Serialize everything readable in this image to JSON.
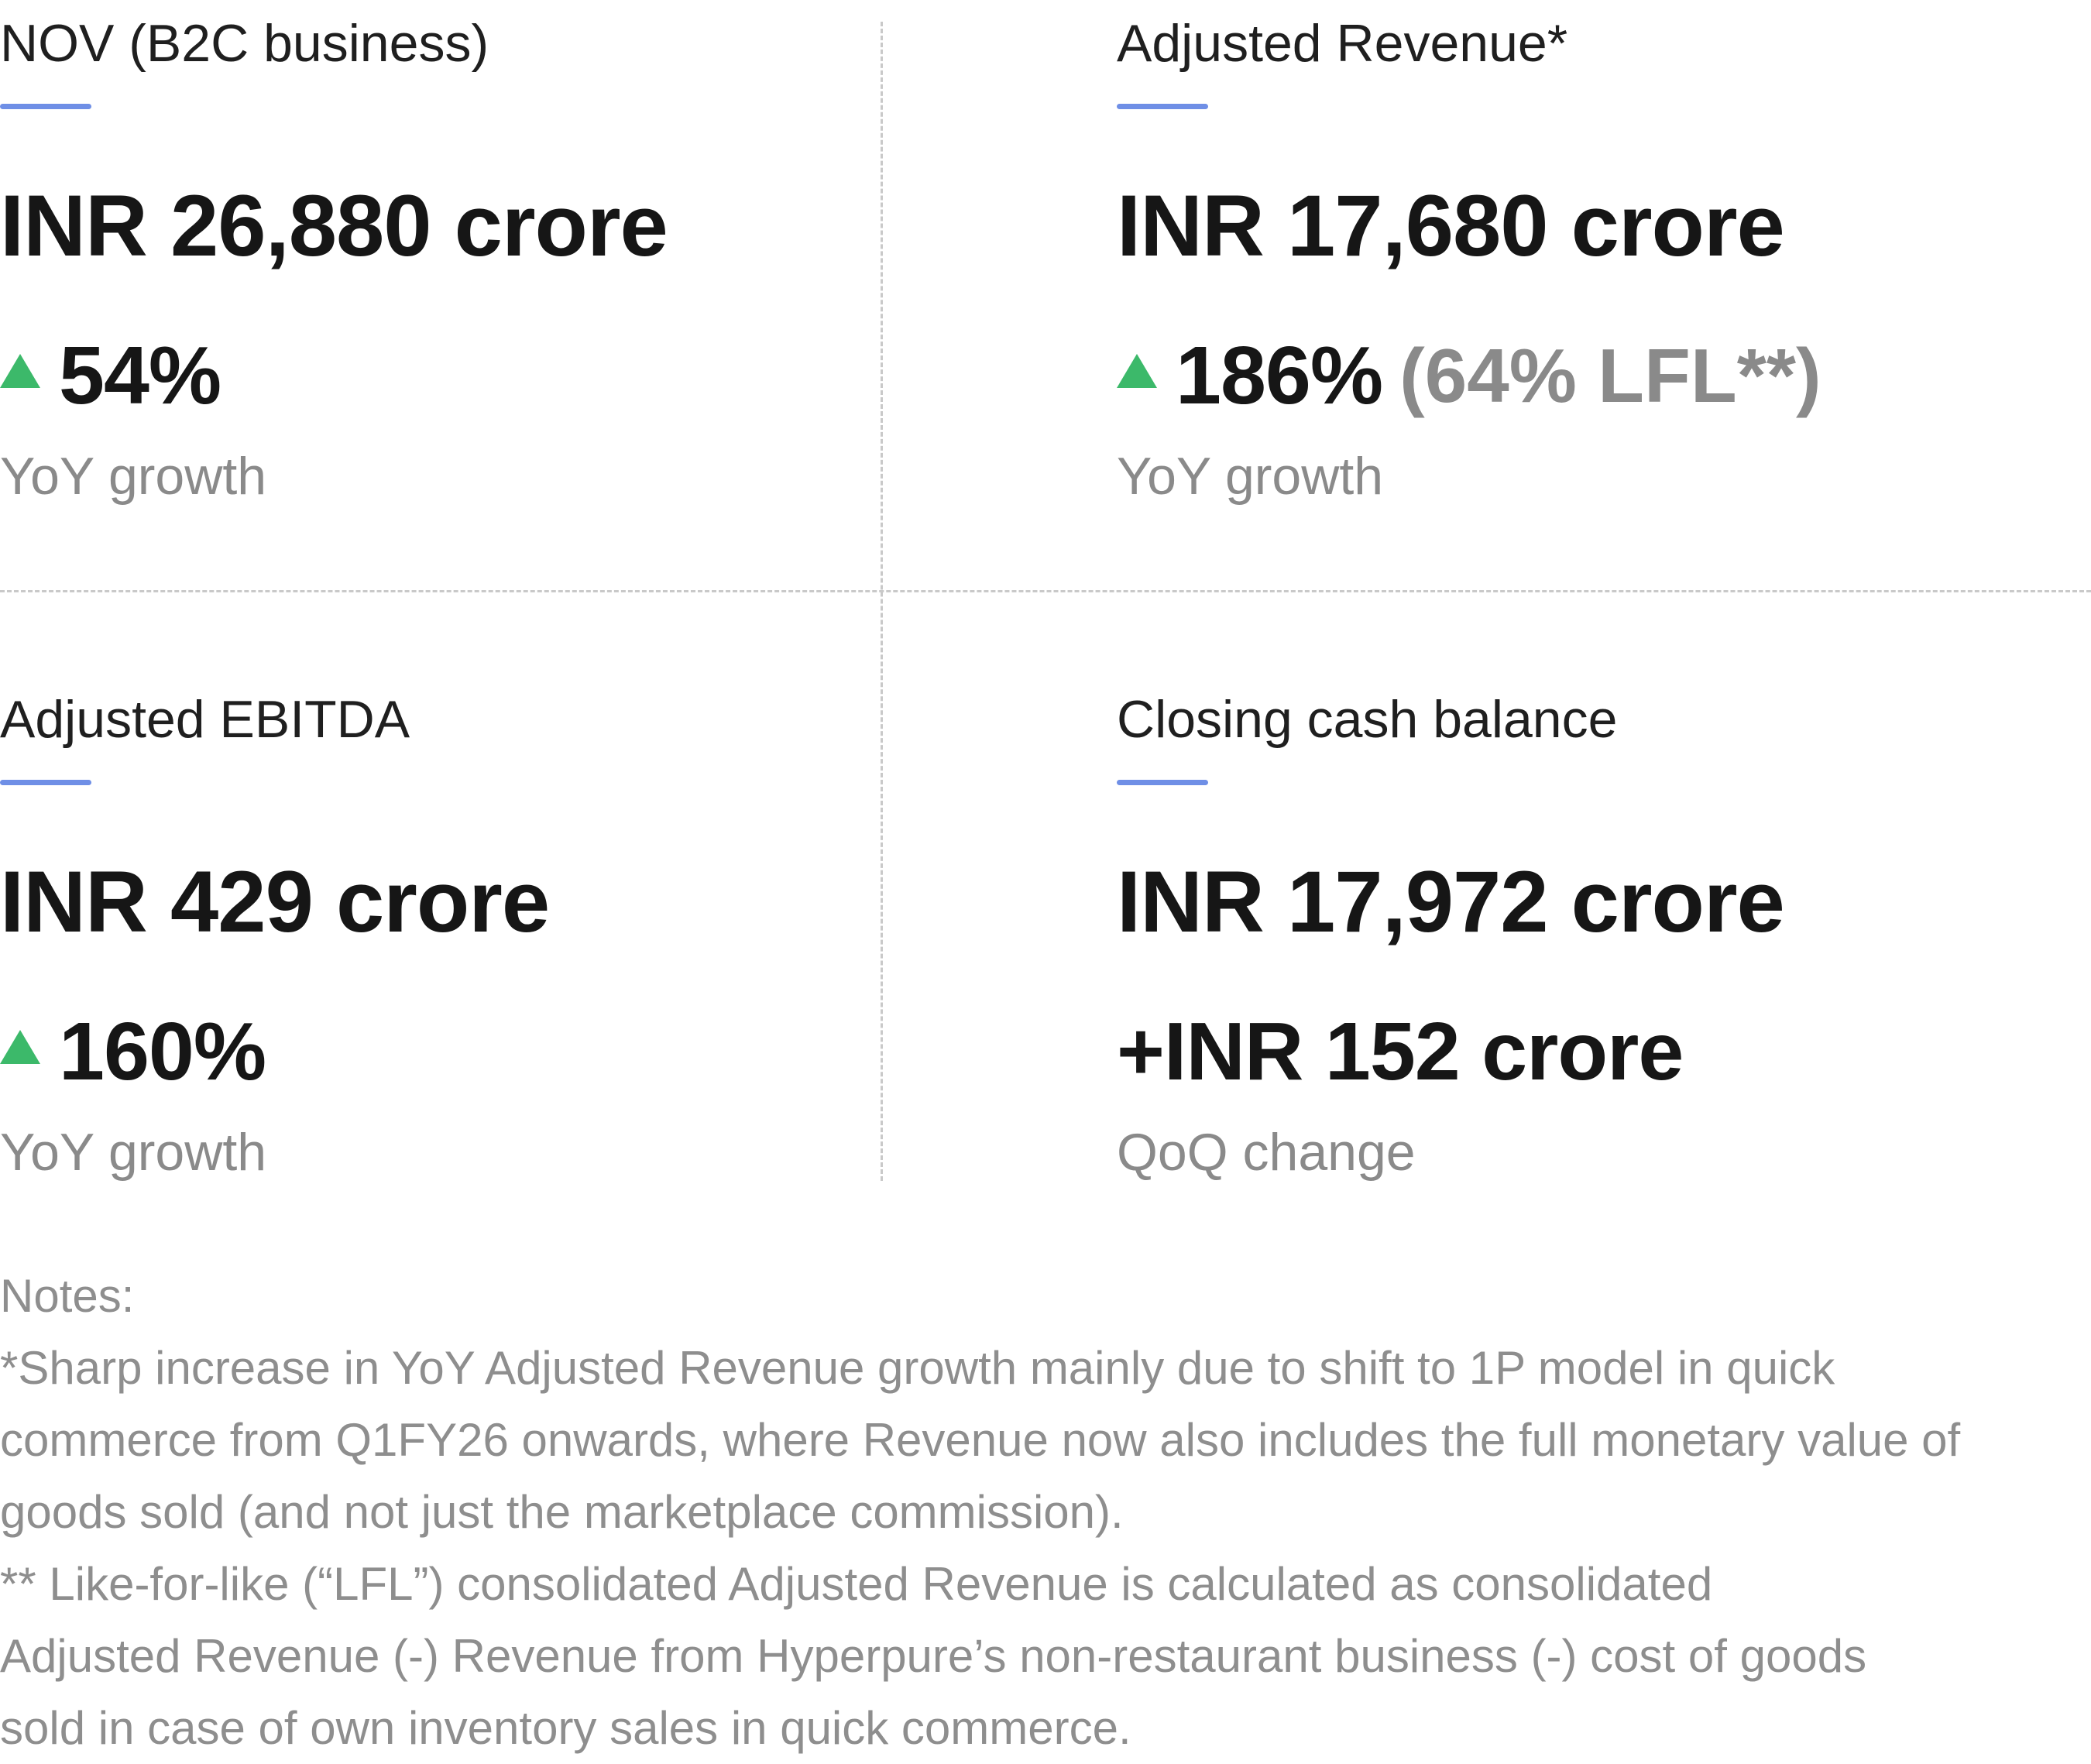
{
  "metrics": [
    {
      "label": "NOV (B2C business)",
      "value": "INR 26,880 crore",
      "change": "54%",
      "change_note": "",
      "direction": "up",
      "sublabel": "YoY growth"
    },
    {
      "label": "Adjusted Revenue*",
      "value": "INR 17,680 crore",
      "change": "186%",
      "change_note": "(64% LFL**)",
      "direction": "up",
      "sublabel": "YoY growth"
    },
    {
      "label": "Adjusted EBITDA",
      "value": "INR 429 crore",
      "change": "160%",
      "change_note": "",
      "direction": "up",
      "sublabel": "YoY growth"
    },
    {
      "label": "Closing cash balance",
      "value": "INR 17,972 crore",
      "change": "+INR 152 crore",
      "change_note": "",
      "direction": "none",
      "sublabel": "QoQ change"
    }
  ],
  "notes": {
    "heading": "Notes:",
    "note1_lines": [
      "*Sharp increase in YoY Adjusted Revenue growth mainly due to shift to 1P model in quick",
      "commerce from Q1FY26 onwards, where Revenue now also includes the full monetary value of",
      "goods sold (and not just the marketplace commission)."
    ],
    "note2_lines": [
      "** Like-for-like (“LFL”) consolidated Adjusted Revenue is calculated as consolidated",
      "Adjusted Revenue (-) Revenue from Hyperpure’s non-restaurant business (-) cost of goods",
      "sold in case of own inventory sales in quick commerce."
    ]
  },
  "colors": {
    "accent": "#6f8fe6",
    "up_arrow": "#3cb96a",
    "muted_text": "#8a8a8a",
    "divider": "#c9c9c9"
  },
  "icons": {
    "up_arrow": "triangle-up-icon"
  }
}
